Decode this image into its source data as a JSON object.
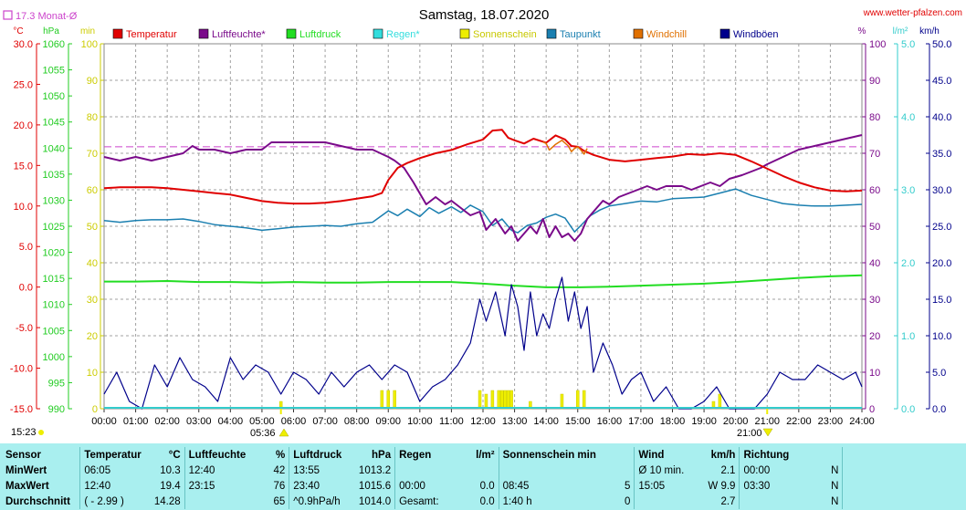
{
  "title": "Samstag, 18.07.2020",
  "source": "www.wetter-pfalzen.com",
  "month_avg_label": "17.3 Monat-Ø",
  "units": {
    "temp": "°C",
    "pressure": "hPa",
    "sun": "min",
    "humidity": "%",
    "rain": "l/m²",
    "wind": "km/h"
  },
  "legend": [
    {
      "label": "Temperatur",
      "color": "#e00000"
    },
    {
      "label": "Luftfeuchte*",
      "color": "#7a0a8a"
    },
    {
      "label": "Luftdruck",
      "color": "#22dd22"
    },
    {
      "label": "Regen*",
      "color": "#33dddd"
    },
    {
      "label": "Sonnenschein",
      "color": "#eeee00"
    },
    {
      "label": "Taupunkt",
      "color": "#1a7fb0"
    },
    {
      "label": "Windchill",
      "color": "#e07000"
    },
    {
      "label": "Windböen",
      "color": "#00008b"
    }
  ],
  "colors": {
    "temp_axis": "#e00000",
    "pressure_axis": "#22cc22",
    "sun_axis": "#cccc00",
    "humidity_axis": "#7a0a8a",
    "rain_axis": "#33cccc",
    "wind_axis": "#00008b",
    "month_line": "#cc44cc"
  },
  "time_marks": {
    "now": "15:23",
    "sunrise": "05:36",
    "sunset": "21:00"
  },
  "chart_data": {
    "type": "line",
    "x_ticks": [
      "00:00",
      "01:00",
      "02:00",
      "03:00",
      "04:00",
      "05:00",
      "06:00",
      "07:00",
      "08:00",
      "09:00",
      "10:00",
      "11:00",
      "12:00",
      "13:00",
      "14:00",
      "15:00",
      "16:00",
      "17:00",
      "18:00",
      "19:00",
      "20:00",
      "21:00",
      "22:00",
      "23:00",
      "24:00"
    ],
    "xlim": [
      0,
      24
    ],
    "axes": {
      "temp": {
        "unit": "°C",
        "ticks": [
          "30.0",
          "25.0",
          "20.0",
          "15.0",
          "10.0",
          "5.0",
          "0.0",
          "-5.0",
          "-10.0",
          "-15.0"
        ],
        "ylim": [
          -15,
          30
        ]
      },
      "pressure": {
        "unit": "hPa",
        "ticks": [
          "1060",
          "1055",
          "1050",
          "1045",
          "1040",
          "1035",
          "1030",
          "1025",
          "1020",
          "1015",
          "1010",
          "1005",
          "1000",
          "995",
          "990"
        ],
        "ylim": [
          990,
          1060
        ]
      },
      "sun": {
        "unit": "min",
        "ticks": [
          "100",
          "90",
          "80",
          "70",
          "60",
          "50",
          "40",
          "30",
          "20",
          "10",
          "0"
        ],
        "ylim": [
          0,
          100
        ]
      },
      "humidity": {
        "unit": "%",
        "ticks": [
          "100",
          "90",
          "80",
          "70",
          "60",
          "50",
          "40",
          "30",
          "20",
          "10",
          "0"
        ],
        "ylim": [
          0,
          100
        ]
      },
      "rain": {
        "unit": "l/m²",
        "ticks": [
          "5.0",
          "4.0",
          "3.0",
          "2.0",
          "1.0",
          "0.0"
        ],
        "ylim": [
          0,
          5
        ]
      },
      "wind": {
        "unit": "km/h",
        "ticks": [
          "50.0",
          "45.0",
          "40.0",
          "35.0",
          "30.0",
          "25.0",
          "20.0",
          "15.0",
          "10.0",
          "5.0",
          "0.0"
        ],
        "ylim": [
          0,
          50
        ]
      }
    },
    "month_avg_temp": 17.3,
    "series": [
      {
        "name": "Temperatur",
        "axis": "temp",
        "color": "#e00000",
        "x": [
          0,
          0.5,
          1,
          1.5,
          2,
          2.5,
          3,
          3.5,
          4,
          4.5,
          5,
          5.5,
          6,
          6.1,
          6.5,
          7,
          7.5,
          8,
          8.5,
          8.8,
          9,
          9.3,
          9.6,
          10,
          10.5,
          11,
          11.5,
          12,
          12.3,
          12.6,
          12.8,
          13,
          13.3,
          13.6,
          14,
          14.3,
          14.6,
          14.8,
          15,
          15.2,
          15.5,
          16,
          16.5,
          17,
          17.5,
          18,
          18.5,
          19,
          19.5,
          20,
          20.5,
          21,
          21.5,
          22,
          22.5,
          23,
          23.5,
          24
        ],
        "y": [
          12.2,
          12.3,
          12.3,
          12.3,
          12.2,
          12.0,
          11.8,
          11.6,
          11.4,
          11.0,
          10.6,
          10.4,
          10.3,
          10.3,
          10.3,
          10.4,
          10.6,
          10.9,
          11.2,
          11.6,
          13.2,
          14.7,
          15.3,
          15.9,
          16.5,
          16.9,
          17.6,
          18.2,
          19.3,
          19.4,
          18.4,
          18.1,
          17.7,
          18.3,
          17.8,
          18.7,
          18.2,
          17.4,
          17.3,
          16.8,
          16.3,
          15.7,
          15.5,
          15.7,
          15.9,
          16.1,
          16.4,
          16.3,
          16.5,
          16.3,
          15.5,
          14.6,
          13.7,
          12.9,
          12.3,
          11.9,
          11.8,
          11.9
        ]
      },
      {
        "name": "Luftfeuchte*",
        "axis": "humidity",
        "color": "#7a0a8a",
        "x": [
          0,
          0.5,
          1,
          1.5,
          2,
          2.5,
          2.8,
          3,
          3.5,
          4,
          4.5,
          5,
          5.3,
          5.6,
          6,
          6.5,
          7,
          7.5,
          8,
          8.5,
          9,
          9.2,
          9.5,
          9.8,
          10,
          10.2,
          10.5,
          10.8,
          11,
          11.3,
          11.6,
          11.9,
          12.1,
          12.4,
          12.7,
          12.9,
          13.1,
          13.3,
          13.5,
          13.7,
          13.9,
          14.1,
          14.3,
          14.5,
          14.7,
          14.9,
          15.1,
          15.3,
          15.5,
          15.8,
          16,
          16.3,
          16.6,
          16.9,
          17.2,
          17.5,
          17.8,
          18,
          18.3,
          18.6,
          18.9,
          19.2,
          19.5,
          19.8,
          20.2,
          20.5,
          20.8,
          21,
          21.5,
          22,
          22.5,
          23,
          23.5,
          24
        ],
        "y": [
          69,
          68,
          69,
          68,
          69,
          70,
          72,
          71,
          71,
          70,
          71,
          71,
          73,
          73,
          73,
          73,
          73,
          72,
          71,
          71,
          69,
          68,
          66,
          62,
          59,
          56,
          58,
          56,
          57,
          55,
          53,
          54,
          49,
          52,
          48,
          50,
          46,
          48,
          50,
          48,
          52,
          47,
          50,
          47,
          48,
          46,
          48,
          52,
          54,
          57,
          56,
          58,
          59,
          60,
          61,
          60,
          61,
          61,
          61,
          60,
          61,
          62,
          61,
          63,
          64,
          65,
          66,
          67,
          69,
          71,
          72,
          73,
          74,
          75
        ]
      },
      {
        "name": "Luftdruck",
        "axis": "pressure",
        "color": "#22dd22",
        "x": [
          0,
          1,
          2,
          3,
          4,
          5,
          6,
          7,
          8,
          9,
          10,
          11,
          12,
          13,
          14,
          15,
          16,
          17,
          18,
          19,
          20,
          21,
          22,
          23,
          24
        ],
        "y": [
          1014.4,
          1014.4,
          1014.5,
          1014.3,
          1014.3,
          1014.2,
          1014.3,
          1014.2,
          1014.2,
          1014.3,
          1014.3,
          1014.3,
          1014.0,
          1013.6,
          1013.3,
          1013.3,
          1013.4,
          1013.6,
          1013.8,
          1014.0,
          1014.3,
          1014.7,
          1015.1,
          1015.4,
          1015.6
        ]
      },
      {
        "name": "Taupunkt",
        "axis": "temp",
        "color": "#1a7fb0",
        "x": [
          0,
          0.5,
          1,
          1.5,
          2,
          2.5,
          3,
          3.5,
          4,
          4.5,
          5,
          5.5,
          6,
          6.5,
          7,
          7.5,
          8,
          8.5,
          9,
          9.3,
          9.6,
          10,
          10.3,
          10.6,
          11,
          11.3,
          11.6,
          12,
          12.3,
          12.6,
          12.9,
          13.1,
          13.4,
          13.7,
          14,
          14.3,
          14.6,
          14.9,
          15.1,
          15.4,
          15.7,
          16,
          16.5,
          17,
          17.5,
          18,
          18.5,
          19,
          19.5,
          20,
          20.5,
          21,
          21.5,
          22,
          22.5,
          23,
          23.5,
          24
        ],
        "y": [
          8.2,
          8.0,
          8.2,
          8.3,
          8.3,
          8.4,
          8.1,
          7.7,
          7.5,
          7.3,
          7.0,
          7.2,
          7.4,
          7.5,
          7.6,
          7.5,
          7.8,
          8.0,
          9.4,
          8.8,
          9.6,
          8.7,
          9.8,
          9.1,
          9.9,
          9.2,
          10.1,
          9.3,
          7.6,
          8.4,
          7.0,
          6.7,
          7.6,
          7.9,
          8.6,
          9.0,
          8.5,
          6.8,
          7.6,
          8.8,
          9.5,
          10.0,
          10.3,
          10.6,
          10.5,
          10.9,
          11.0,
          11.1,
          11.6,
          12.1,
          11.3,
          10.8,
          10.3,
          10.1,
          10.0,
          10.0,
          10.1,
          10.2
        ]
      },
      {
        "name": "Windchill",
        "axis": "temp",
        "color": "#e07000",
        "x": [
          13.9,
          14.0,
          14.1,
          14.3,
          14.5,
          14.7,
          14.8,
          14.9,
          15.0,
          15.1,
          15.2,
          15.3
        ],
        "y": [
          17.9,
          17.7,
          16.9,
          17.6,
          18.1,
          17.4,
          16.7,
          17.1,
          17.3,
          16.9,
          16.4,
          17.1
        ]
      },
      {
        "name": "Windböen",
        "axis": "wind",
        "color": "#00008b",
        "x": [
          0,
          0.4,
          0.8,
          1.2,
          1.6,
          2,
          2.4,
          2.8,
          3.2,
          3.6,
          4,
          4.4,
          4.8,
          5.2,
          5.6,
          6,
          6.4,
          6.8,
          7.2,
          7.6,
          8,
          8.4,
          8.8,
          9.2,
          9.6,
          10,
          10.4,
          10.8,
          11.2,
          11.6,
          11.9,
          12.1,
          12.4,
          12.7,
          12.9,
          13.1,
          13.3,
          13.5,
          13.7,
          13.9,
          14.1,
          14.3,
          14.5,
          14.7,
          14.9,
          15.1,
          15.3,
          15.5,
          15.8,
          16.1,
          16.4,
          16.7,
          17,
          17.4,
          17.8,
          18.2,
          18.6,
          19,
          19.4,
          19.8,
          20.2,
          20.6,
          21,
          21.4,
          21.8,
          22.2,
          22.6,
          23,
          23.4,
          23.8,
          24
        ],
        "y": [
          2,
          5,
          1,
          0,
          6,
          3,
          7,
          4,
          3,
          1,
          7,
          4,
          6,
          5,
          2,
          5,
          4,
          2,
          5,
          3,
          5,
          6,
          4,
          6,
          5,
          1,
          3,
          4,
          6,
          9,
          15,
          12,
          16,
          10,
          17,
          14,
          8,
          16,
          10,
          13,
          11,
          15,
          18,
          12,
          16,
          11,
          14,
          5,
          9,
          6,
          2,
          4,
          5,
          1,
          3,
          0,
          0,
          1,
          3,
          0,
          0,
          0,
          2,
          5,
          4,
          4,
          6,
          5,
          4,
          5,
          3
        ]
      },
      {
        "name": "Sonnenschein",
        "axis": "sun",
        "color": "#eeee00",
        "x": [
          5.6,
          8.8,
          9.0,
          9.2,
          11.9,
          12.1,
          12.3,
          12.5,
          12.6,
          12.7,
          12.8,
          12.9,
          13.5,
          14.5,
          15.0,
          15.2,
          19.3,
          19.5
        ],
        "y": [
          2,
          5,
          5,
          5,
          5,
          4,
          5,
          5,
          5,
          5,
          5,
          5,
          2,
          4,
          5,
          5,
          2,
          4
        ]
      }
    ]
  },
  "stats": {
    "header": {
      "sensor": "Sensor",
      "temp": "Temperatur",
      "temp_unit": "°C",
      "hum": "Luftfeuchte",
      "hum_unit": "%",
      "press": "Luftdruck",
      "press_unit": "hPa",
      "rain": "Regen",
      "rain_unit": "l/m²",
      "sun": "Sonnenschein min",
      "wind": "Wind",
      "wind_unit": "km/h",
      "dir": "Richtung"
    },
    "min": {
      "label": "MinWert",
      "temp_time": "06:05",
      "temp_val": "10.3",
      "hum_time": "12:40",
      "hum_val": "42",
      "press_time": "13:55",
      "press_val": "1013.2",
      "rain_time": "",
      "rain_val": "",
      "sun_time": "",
      "sun_val": "",
      "wind_time": "Ø 10 min.",
      "wind_val": "2.1",
      "dir_time": "00:00",
      "dir_val": "N"
    },
    "max": {
      "label": "MaxWert",
      "temp_time": "12:40",
      "temp_val": "19.4",
      "hum_time": "23:15",
      "hum_val": "76",
      "press_time": "23:40",
      "press_val": "1015.6",
      "rain_time": "00:00",
      "rain_val": "0.0",
      "sun_time": "08:45",
      "sun_val": "5",
      "wind_time": "15:05",
      "wind_val": "W 9.9",
      "dir_time": "03:30",
      "dir_val": "N"
    },
    "avg": {
      "label": "Durchschnitt",
      "temp_time": "( - 2.99 )",
      "temp_val": "14.28",
      "hum_time": "",
      "hum_val": "65",
      "press_time": "^0.9hPa/h",
      "press_val": "1014.0",
      "rain_time": "Gesamt:",
      "rain_val": "0.0",
      "sun_time": "1:40 h",
      "sun_val": "0",
      "wind_time": "",
      "wind_val": "2.7",
      "dir_time": "",
      "dir_val": "N"
    }
  }
}
